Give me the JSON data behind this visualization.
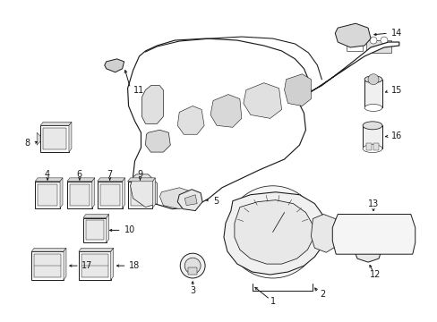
{
  "background": "#ffffff",
  "line_color": "#1a1a1a",
  "line_width": 0.7,
  "label_fontsize": 7.0,
  "fig_width": 4.89,
  "fig_height": 3.6
}
